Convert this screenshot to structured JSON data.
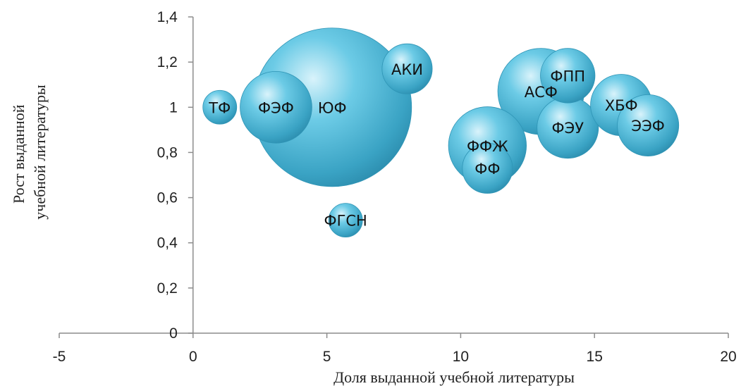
{
  "chart_data": {
    "type": "bubble",
    "title": "",
    "xlabel": "Доля выданной учебной литературы",
    "ylabel_lines": [
      "Рост выданной",
      "учебной литературы"
    ],
    "xlim": [
      -5,
      20
    ],
    "ylim": [
      0,
      1.4
    ],
    "x_ticks": [
      -5,
      0,
      5,
      10,
      15,
      20
    ],
    "y_ticks": [
      0,
      0.2,
      0.4,
      0.6,
      0.8,
      1,
      1.2,
      1.4
    ],
    "x_tick_labels": [
      "-5",
      "0",
      "5",
      "10",
      "15",
      "20"
    ],
    "y_tick_labels": [
      "0",
      "0,2",
      "0,4",
      "0,6",
      "0,8",
      "1",
      "1,2",
      "1,4"
    ],
    "grid": false,
    "bubble_color": "#4bb4d2",
    "points": [
      {
        "label": "ТФ",
        "x": 1.0,
        "y": 1.0,
        "size": 1.0
      },
      {
        "label": "ФЭФ",
        "x": 3.1,
        "y": 1.0,
        "size": 4.5
      },
      {
        "label": "ЮФ",
        "x": 5.2,
        "y": 1.0,
        "size": 22.0
      },
      {
        "label": "АКИ",
        "x": 8.0,
        "y": 1.17,
        "size": 2.2
      },
      {
        "label": "ФГСН",
        "x": 5.7,
        "y": 0.5,
        "size": 1.0
      },
      {
        "label": "АСФ",
        "x": 13.0,
        "y": 1.07,
        "size": 6.5
      },
      {
        "label": "ФПП",
        "x": 14.0,
        "y": 1.14,
        "size": 2.6
      },
      {
        "label": "ФЭУ",
        "x": 14.0,
        "y": 0.91,
        "size": 3.3
      },
      {
        "label": "ХБФ",
        "x": 16.0,
        "y": 1.01,
        "size": 3.3
      },
      {
        "label": "ЭЭФ",
        "x": 17.0,
        "y": 0.92,
        "size": 3.3
      },
      {
        "label": "ФФЖ",
        "x": 11.0,
        "y": 0.83,
        "size": 5.3
      },
      {
        "label": "ФФ",
        "x": 11.0,
        "y": 0.73,
        "size": 2.2
      }
    ]
  }
}
